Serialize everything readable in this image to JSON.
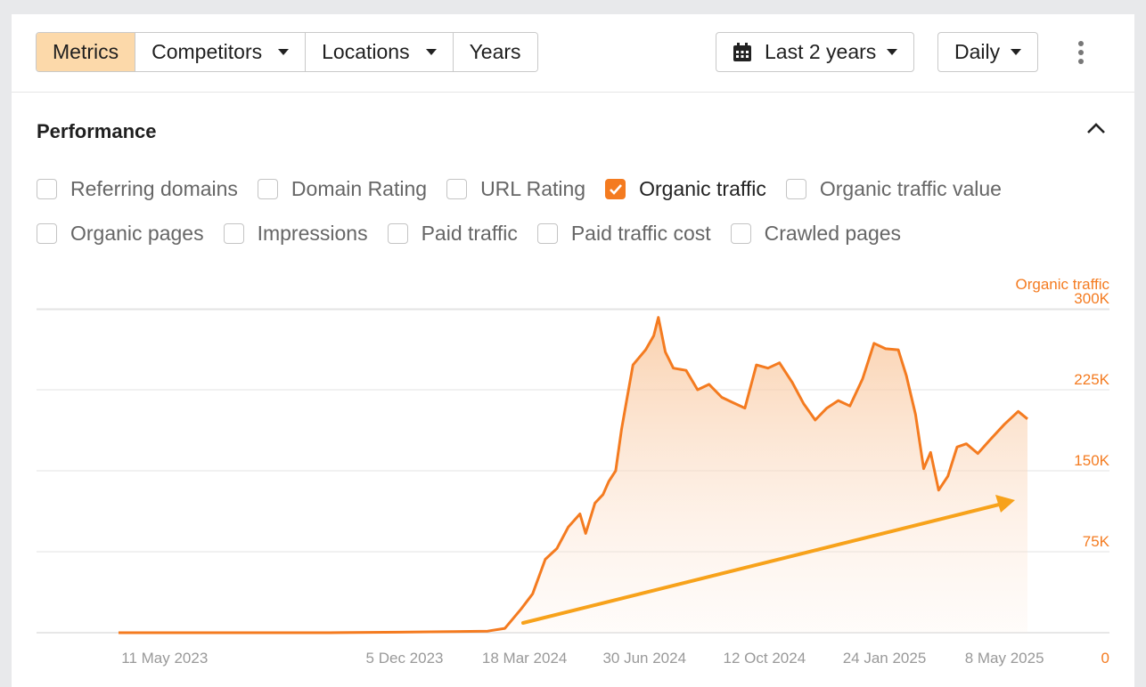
{
  "toolbar": {
    "tabs": [
      {
        "label": "Metrics",
        "active": true
      },
      {
        "label": "Competitors",
        "dropdown": true
      },
      {
        "label": "Locations",
        "dropdown": true
      },
      {
        "label": "Years"
      }
    ],
    "range_label": "Last 2 years",
    "granularity_label": "Daily"
  },
  "section": {
    "title": "Performance"
  },
  "checkboxes": {
    "row1": [
      {
        "label": "Referring domains",
        "checked": false
      },
      {
        "label": "Domain Rating",
        "checked": false
      },
      {
        "label": "URL Rating",
        "checked": false
      },
      {
        "label": "Organic traffic",
        "checked": true
      },
      {
        "label": "Organic traffic value",
        "checked": false
      }
    ],
    "row2": [
      {
        "label": "Organic pages",
        "checked": false
      },
      {
        "label": "Impressions",
        "checked": false
      },
      {
        "label": "Paid traffic",
        "checked": false
      },
      {
        "label": "Paid traffic cost",
        "checked": false
      },
      {
        "label": "Crawled pages",
        "checked": false
      }
    ]
  },
  "colors": {
    "accent": "#f47b20",
    "accent_light": "#fcd9aa",
    "arrow": "#f7a21b"
  },
  "chart_data": {
    "type": "area",
    "series": [
      {
        "name": "Organic traffic",
        "x": [
          "2023-04-01",
          "2023-06-01",
          "2023-08-01",
          "2023-10-01",
          "2023-12-01",
          "2024-01-15",
          "2024-02-15",
          "2024-03-01",
          "2024-03-15",
          "2024-03-25",
          "2024-04-05",
          "2024-04-15",
          "2024-04-25",
          "2024-05-05",
          "2024-05-10",
          "2024-05-18",
          "2024-05-25",
          "2024-05-30",
          "2024-06-05",
          "2024-06-10",
          "2024-06-15",
          "2024-06-20",
          "2024-07-01",
          "2024-07-08",
          "2024-07-12",
          "2024-07-18",
          "2024-07-25",
          "2024-08-05",
          "2024-08-15",
          "2024-08-25",
          "2024-09-05",
          "2024-09-15",
          "2024-09-25",
          "2024-10-05",
          "2024-10-15",
          "2024-10-25",
          "2024-11-05",
          "2024-11-15",
          "2024-11-25",
          "2024-12-05",
          "2024-12-15",
          "2024-12-25",
          "2025-01-05",
          "2025-01-15",
          "2025-01-25",
          "2025-02-05",
          "2025-02-12",
          "2025-02-20",
          "2025-02-27",
          "2025-03-05",
          "2025-03-12",
          "2025-03-20",
          "2025-03-28",
          "2025-04-05",
          "2025-04-15",
          "2025-04-25",
          "2025-05-08",
          "2025-05-20",
          "2025-05-28"
        ],
        "values": [
          0,
          0,
          0,
          0,
          500,
          1000,
          1500,
          4000,
          22000,
          36000,
          68000,
          78000,
          98000,
          110000,
          92000,
          120000,
          128000,
          140000,
          150000,
          188000,
          218000,
          248000,
          262000,
          275000,
          292000,
          260000,
          245000,
          243000,
          225000,
          230000,
          218000,
          213000,
          208000,
          248000,
          245000,
          250000,
          232000,
          212000,
          197000,
          208000,
          215000,
          210000,
          235000,
          268000,
          263000,
          262000,
          238000,
          202000,
          152000,
          167000,
          132000,
          145000,
          172000,
          175000,
          166000,
          178000,
          193000,
          205000,
          198000
        ]
      }
    ],
    "x_ticks": [
      "11 May 2023",
      "5 Dec 2023",
      "18 Mar 2024",
      "30 Jun 2024",
      "12 Oct 2024",
      "24 Jan 2025",
      "8 May 2025"
    ],
    "y_ticks": [
      "300K",
      "225K",
      "150K",
      "75K",
      "0"
    ],
    "ylim": [
      0,
      300000
    ],
    "ylabel": "Organic traffic",
    "grid": true,
    "legend": "none",
    "annotations": [
      {
        "type": "trend-arrow",
        "direction": "up"
      }
    ]
  }
}
